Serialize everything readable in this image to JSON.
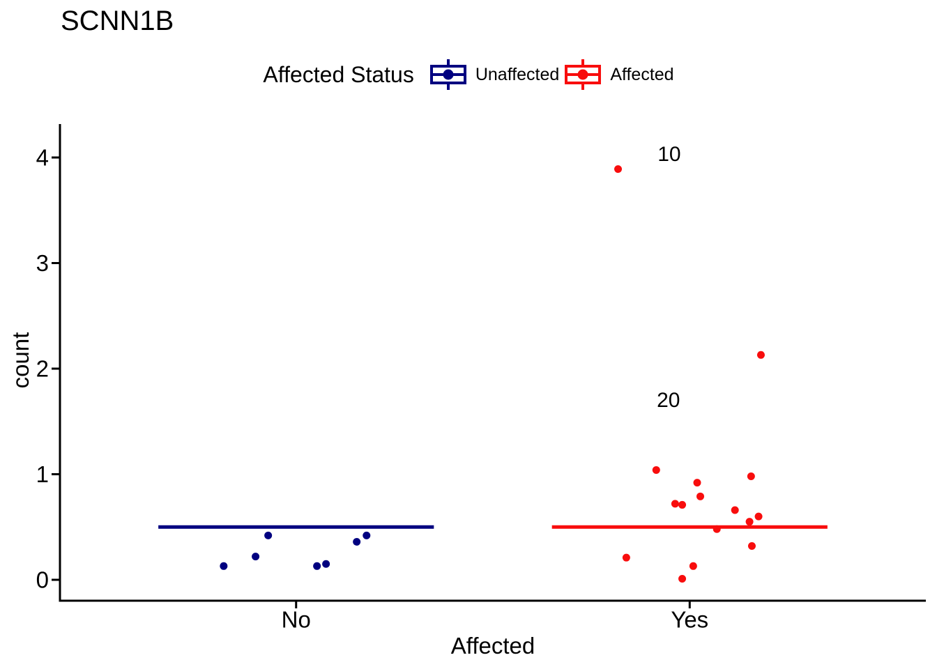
{
  "page_title": "SCNN1B",
  "legend": {
    "title": "Affected Status",
    "entries": [
      {
        "label": "Unaffected",
        "color": "#000080"
      },
      {
        "label": "Affected",
        "color": "#f80d0d"
      }
    ]
  },
  "chart_data": {
    "type": "scatter",
    "subtype": "jitter-strip-plot-with-median-crossbar",
    "title": "SCNN1B",
    "xlabel": "Affected",
    "ylabel": "count",
    "categories": [
      "No",
      "Yes"
    ],
    "category_positions": [
      1,
      2
    ],
    "yticks": [
      0,
      1,
      2,
      3,
      4
    ],
    "ylim": [
      -0.2,
      4.32
    ],
    "xlim": [
      0.4,
      2.6
    ],
    "grid": false,
    "legend_position": "top",
    "series": [
      {
        "name": "Unaffected",
        "category": "No",
        "color": "#000080",
        "crossbar_y": 0.5,
        "crossbar_center": 1,
        "crossbar_halfwidth": 0.35,
        "points": [
          [
            0.816,
            0.13
          ],
          [
            0.897,
            0.22
          ],
          [
            0.929,
            0.42
          ],
          [
            1.053,
            0.13
          ],
          [
            1.076,
            0.15
          ],
          [
            1.154,
            0.36
          ],
          [
            1.179,
            0.42
          ]
        ]
      },
      {
        "name": "Affected",
        "category": "Yes",
        "color": "#f80d0d",
        "crossbar_y": 0.5,
        "crossbar_center": 2,
        "crossbar_halfwidth": 0.35,
        "points": [
          [
            1.818,
            3.89
          ],
          [
            2.181,
            2.13
          ],
          [
            1.915,
            1.04
          ],
          [
            2.156,
            0.98
          ],
          [
            2.019,
            0.92
          ],
          [
            2.027,
            0.79
          ],
          [
            1.963,
            0.72
          ],
          [
            1.981,
            0.71
          ],
          [
            2.115,
            0.66
          ],
          [
            2.175,
            0.6
          ],
          [
            2.152,
            0.55
          ],
          [
            2.069,
            0.48
          ],
          [
            2.158,
            0.32
          ],
          [
            1.839,
            0.21
          ],
          [
            2.009,
            0.13
          ],
          [
            1.981,
            0.01
          ]
        ]
      }
    ],
    "annotations": [
      {
        "text": "10",
        "x": 1.948,
        "y": 4.03
      },
      {
        "text": "20",
        "x": 1.946,
        "y": 1.7
      }
    ]
  }
}
